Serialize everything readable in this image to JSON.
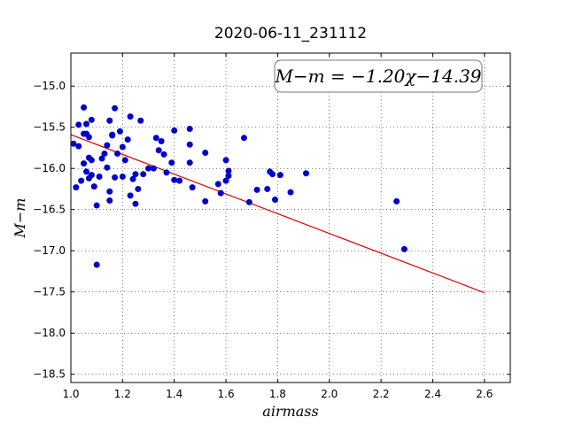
{
  "chart_data": {
    "type": "scatter",
    "title": "2020-06-11_231112",
    "xlabel": "airmass",
    "ylabel": "M−m",
    "xlim": [
      1.0,
      2.7
    ],
    "ylim": [
      -18.6,
      -14.6
    ],
    "x_ticks": [
      1.0,
      1.2,
      1.4,
      1.6,
      1.8,
      2.0,
      2.2,
      2.4,
      2.6
    ],
    "x_tick_labels": [
      "1.0",
      "1.2",
      "1.4",
      "1.6",
      "1.8",
      "2.0",
      "2.2",
      "2.4",
      "2.6"
    ],
    "y_ticks": [
      -15.0,
      -15.5,
      -16.0,
      -16.5,
      -17.0,
      -17.5,
      -18.0,
      -18.5
    ],
    "y_tick_labels": [
      "−15.0",
      "−15.5",
      "−16.0",
      "−16.5",
      "−17.0",
      "−17.5",
      "−18.0",
      "−18.5"
    ],
    "grid": true,
    "annotation": "M−m = −1.20χ−14.39",
    "point_color": "#0000cc",
    "fit_color": "#dd0000",
    "fit_line": {
      "slope": -1.2,
      "intercept": -14.39,
      "x_range": [
        1.0,
        2.6
      ]
    },
    "points": [
      [
        1.01,
        -15.7
      ],
      [
        1.02,
        -16.23
      ],
      [
        1.03,
        -15.47
      ],
      [
        1.03,
        -15.73
      ],
      [
        1.04,
        -16.15
      ],
      [
        1.05,
        -15.26
      ],
      [
        1.05,
        -15.58
      ],
      [
        1.05,
        -15.94
      ],
      [
        1.06,
        -15.58
      ],
      [
        1.06,
        -15.46
      ],
      [
        1.06,
        -16.04
      ],
      [
        1.07,
        -15.62
      ],
      [
        1.07,
        -15.87
      ],
      [
        1.07,
        -16.12
      ],
      [
        1.08,
        -15.41
      ],
      [
        1.08,
        -15.9
      ],
      [
        1.08,
        -16.08
      ],
      [
        1.09,
        -16.22
      ],
      [
        1.1,
        -16.45
      ],
      [
        1.1,
        -17.17
      ],
      [
        1.11,
        -16.1
      ],
      [
        1.12,
        -15.88
      ],
      [
        1.13,
        -15.82
      ],
      [
        1.14,
        -15.72
      ],
      [
        1.14,
        -15.99
      ],
      [
        1.15,
        -15.42
      ],
      [
        1.15,
        -16.28
      ],
      [
        1.15,
        -16.39
      ],
      [
        1.16,
        -15.59
      ],
      [
        1.16,
        -15.6
      ],
      [
        1.17,
        -16.11
      ],
      [
        1.17,
        -15.27
      ],
      [
        1.18,
        -15.82
      ],
      [
        1.19,
        -15.55
      ],
      [
        1.2,
        -16.1
      ],
      [
        1.2,
        -15.74
      ],
      [
        1.21,
        -15.9
      ],
      [
        1.22,
        -15.65
      ],
      [
        1.23,
        -16.33
      ],
      [
        1.23,
        -15.37
      ],
      [
        1.24,
        -16.13
      ],
      [
        1.25,
        -16.43
      ],
      [
        1.25,
        -16.07
      ],
      [
        1.26,
        -16.25
      ],
      [
        1.27,
        -15.42
      ],
      [
        1.28,
        -16.07
      ],
      [
        1.3,
        -16.0
      ],
      [
        1.32,
        -16.0
      ],
      [
        1.33,
        -15.63
      ],
      [
        1.34,
        -15.78
      ],
      [
        1.35,
        -15.67
      ],
      [
        1.36,
        -15.83
      ],
      [
        1.37,
        -16.05
      ],
      [
        1.39,
        -15.93
      ],
      [
        1.4,
        -16.14
      ],
      [
        1.4,
        -15.54
      ],
      [
        1.42,
        -16.15
      ],
      [
        1.46,
        -15.52
      ],
      [
        1.46,
        -15.71
      ],
      [
        1.46,
        -15.93
      ],
      [
        1.47,
        -16.23
      ],
      [
        1.52,
        -15.81
      ],
      [
        1.52,
        -16.4
      ],
      [
        1.57,
        -16.19
      ],
      [
        1.58,
        -16.3
      ],
      [
        1.6,
        -16.15
      ],
      [
        1.6,
        -15.9
      ],
      [
        1.61,
        -16.03
      ],
      [
        1.61,
        -16.09
      ],
      [
        1.67,
        -15.63
      ],
      [
        1.69,
        -16.41
      ],
      [
        1.72,
        -16.26
      ],
      [
        1.76,
        -16.25
      ],
      [
        1.77,
        -16.04
      ],
      [
        1.78,
        -16.07
      ],
      [
        1.79,
        -16.38
      ],
      [
        1.81,
        -16.08
      ],
      [
        1.85,
        -16.29
      ],
      [
        1.91,
        -16.06
      ],
      [
        2.26,
        -16.4
      ],
      [
        2.29,
        -16.98
      ]
    ]
  }
}
